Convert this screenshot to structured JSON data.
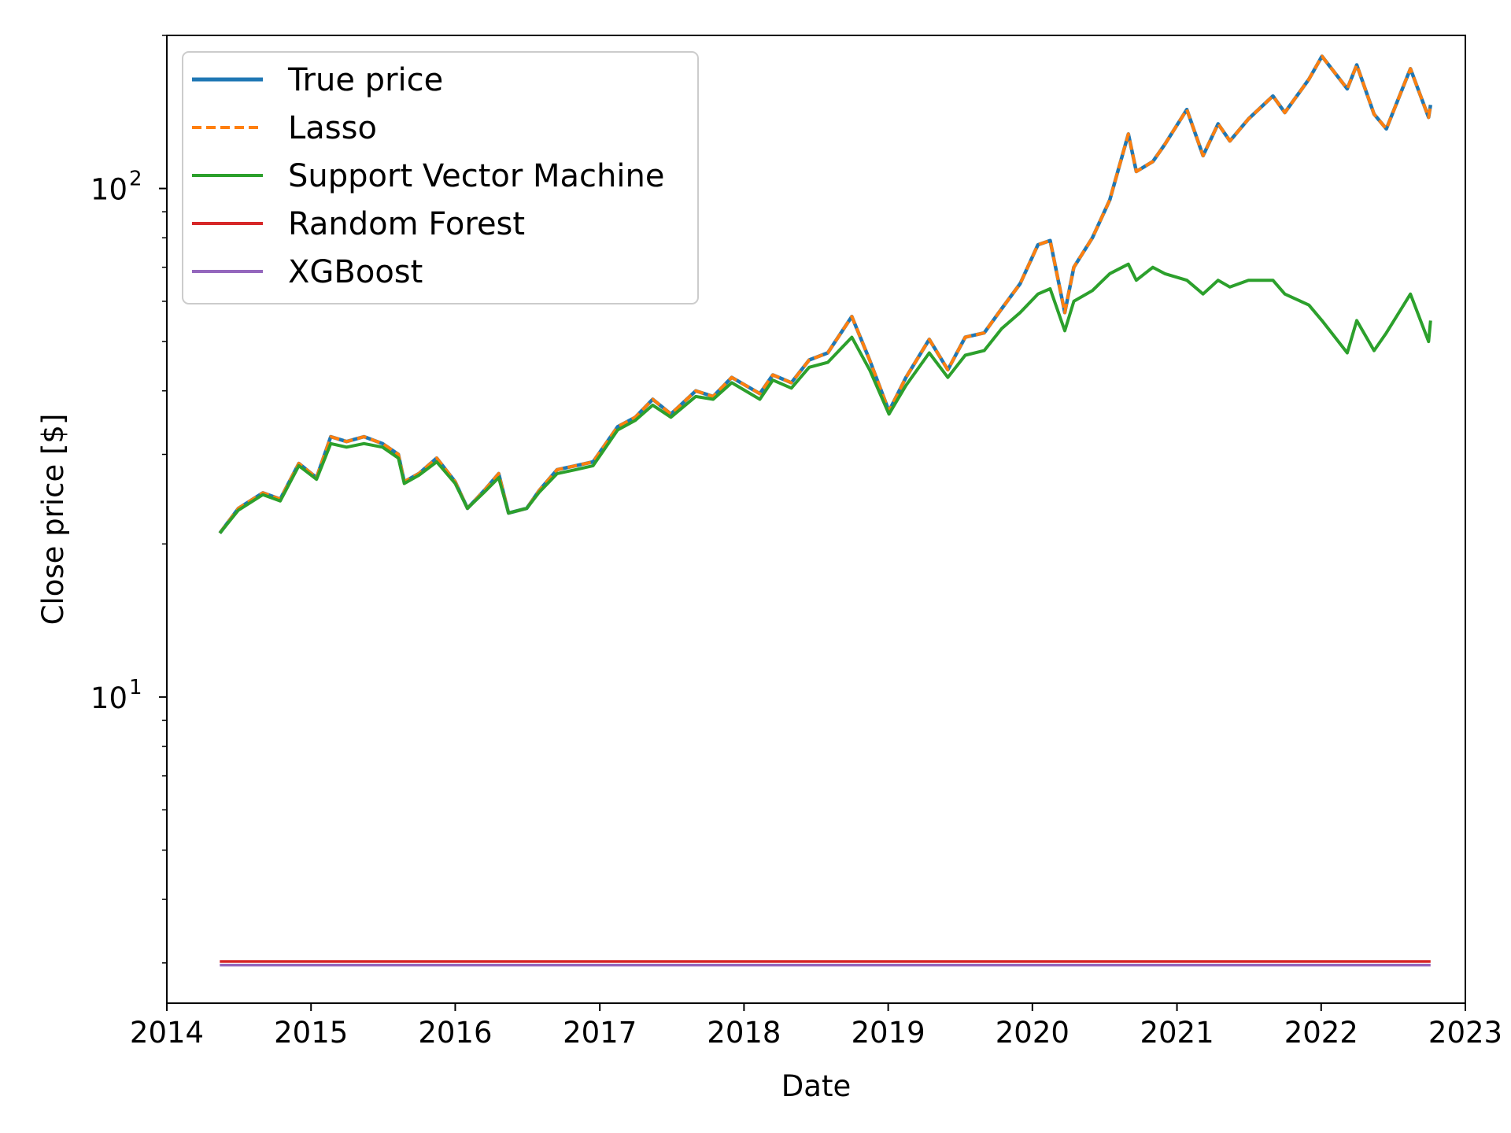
{
  "chart_data": {
    "type": "line",
    "title": "",
    "xlabel": "Date",
    "ylabel": "Close price [$]",
    "yscale": "log",
    "ylim": [
      2.5,
      200
    ],
    "xlim": [
      "2014-01-01",
      "2023-01-01"
    ],
    "x_ticks": [
      "2014",
      "2015",
      "2016",
      "2017",
      "2018",
      "2019",
      "2020",
      "2021",
      "2022",
      "2023"
    ],
    "y_major_ticks": [
      {
        "base": "10",
        "exp": "1",
        "value": 10
      },
      {
        "base": "10",
        "exp": "2",
        "value": 100
      }
    ],
    "legend": {
      "placement": "upper-left"
    },
    "grid": false,
    "series": [
      {
        "name": "True price",
        "color": "#1f77b4",
        "style": "solid",
        "points": [
          [
            "2014-05-15",
            21.0
          ],
          [
            "2014-07-01",
            23.5
          ],
          [
            "2014-09-01",
            25.2
          ],
          [
            "2014-10-15",
            24.5
          ],
          [
            "2014-12-01",
            28.8
          ],
          [
            "2015-01-15",
            27.0
          ],
          [
            "2015-02-20",
            32.5
          ],
          [
            "2015-04-01",
            31.8
          ],
          [
            "2015-05-15",
            32.5
          ],
          [
            "2015-07-01",
            31.5
          ],
          [
            "2015-08-10",
            30.0
          ],
          [
            "2015-08-25",
            26.5
          ],
          [
            "2015-10-01",
            27.5
          ],
          [
            "2015-11-15",
            29.5
          ],
          [
            "2016-01-01",
            26.5
          ],
          [
            "2016-02-01",
            23.5
          ],
          [
            "2016-03-15",
            25.5
          ],
          [
            "2016-04-20",
            27.5
          ],
          [
            "2016-05-15",
            23.0
          ],
          [
            "2016-06-30",
            23.5
          ],
          [
            "2016-08-01",
            25.5
          ],
          [
            "2016-09-15",
            28.0
          ],
          [
            "2016-11-01",
            28.5
          ],
          [
            "2016-12-15",
            29.0
          ],
          [
            "2017-02-15",
            34.0
          ],
          [
            "2017-04-01",
            35.5
          ],
          [
            "2017-05-15",
            38.5
          ],
          [
            "2017-06-30",
            36.0
          ],
          [
            "2017-09-01",
            40.0
          ],
          [
            "2017-10-15",
            39.0
          ],
          [
            "2017-12-01",
            42.5
          ],
          [
            "2018-02-10",
            39.5
          ],
          [
            "2018-03-15",
            43.0
          ],
          [
            "2018-05-01",
            41.5
          ],
          [
            "2018-06-15",
            46.0
          ],
          [
            "2018-08-01",
            47.5
          ],
          [
            "2018-10-01",
            56.0
          ],
          [
            "2018-11-15",
            46.0
          ],
          [
            "2019-01-03",
            36.5
          ],
          [
            "2019-02-15",
            42.5
          ],
          [
            "2019-04-15",
            50.5
          ],
          [
            "2019-06-01",
            44.0
          ],
          [
            "2019-07-15",
            51.0
          ],
          [
            "2019-09-01",
            52.0
          ],
          [
            "2019-10-15",
            58.0
          ],
          [
            "2019-12-01",
            65.0
          ],
          [
            "2020-01-15",
            77.5
          ],
          [
            "2020-02-15",
            79.0
          ],
          [
            "2020-03-23",
            57.0
          ],
          [
            "2020-04-15",
            70.0
          ],
          [
            "2020-06-01",
            80.0
          ],
          [
            "2020-07-15",
            95.0
          ],
          [
            "2020-08-31",
            128.0
          ],
          [
            "2020-09-20",
            108.0
          ],
          [
            "2020-11-01",
            113.0
          ],
          [
            "2020-12-01",
            122.0
          ],
          [
            "2021-01-26",
            143.0
          ],
          [
            "2021-03-08",
            116.0
          ],
          [
            "2021-04-15",
            134.0
          ],
          [
            "2021-05-15",
            124.0
          ],
          [
            "2021-07-01",
            137.0
          ],
          [
            "2021-09-01",
            152.0
          ],
          [
            "2021-10-01",
            141.0
          ],
          [
            "2021-12-01",
            164.0
          ],
          [
            "2022-01-03",
            182.0
          ],
          [
            "2022-03-08",
            157.0
          ],
          [
            "2022-04-01",
            175.0
          ],
          [
            "2022-05-15",
            140.0
          ],
          [
            "2022-06-15",
            131.0
          ],
          [
            "2022-08-15",
            172.0
          ],
          [
            "2022-09-30",
            138.0
          ],
          [
            "2022-10-05",
            146.0
          ]
        ]
      },
      {
        "name": "Lasso",
        "color": "#ff7f0e",
        "style": "dashed",
        "points": [
          [
            "2014-05-15",
            21.0
          ],
          [
            "2014-07-01",
            23.5
          ],
          [
            "2014-09-01",
            25.2
          ],
          [
            "2014-10-15",
            24.5
          ],
          [
            "2014-12-01",
            28.8
          ],
          [
            "2015-01-15",
            27.0
          ],
          [
            "2015-02-20",
            32.5
          ],
          [
            "2015-04-01",
            31.8
          ],
          [
            "2015-05-15",
            32.5
          ],
          [
            "2015-07-01",
            31.5
          ],
          [
            "2015-08-10",
            30.0
          ],
          [
            "2015-08-25",
            26.5
          ],
          [
            "2015-10-01",
            27.5
          ],
          [
            "2015-11-15",
            29.5
          ],
          [
            "2016-01-01",
            26.5
          ],
          [
            "2016-02-01",
            23.5
          ],
          [
            "2016-03-15",
            25.5
          ],
          [
            "2016-04-20",
            27.5
          ],
          [
            "2016-05-15",
            23.0
          ],
          [
            "2016-06-30",
            23.5
          ],
          [
            "2016-08-01",
            25.5
          ],
          [
            "2016-09-15",
            28.0
          ],
          [
            "2016-11-01",
            28.5
          ],
          [
            "2016-12-15",
            29.0
          ],
          [
            "2017-02-15",
            34.0
          ],
          [
            "2017-04-01",
            35.5
          ],
          [
            "2017-05-15",
            38.5
          ],
          [
            "2017-06-30",
            36.0
          ],
          [
            "2017-09-01",
            40.0
          ],
          [
            "2017-10-15",
            39.0
          ],
          [
            "2017-12-01",
            42.5
          ],
          [
            "2018-02-10",
            39.5
          ],
          [
            "2018-03-15",
            43.0
          ],
          [
            "2018-05-01",
            41.5
          ],
          [
            "2018-06-15",
            46.0
          ],
          [
            "2018-08-01",
            47.5
          ],
          [
            "2018-10-01",
            56.0
          ],
          [
            "2018-11-15",
            46.0
          ],
          [
            "2019-01-03",
            36.5
          ],
          [
            "2019-02-15",
            42.5
          ],
          [
            "2019-04-15",
            50.5
          ],
          [
            "2019-06-01",
            44.0
          ],
          [
            "2019-07-15",
            51.0
          ],
          [
            "2019-09-01",
            52.0
          ],
          [
            "2019-10-15",
            58.0
          ],
          [
            "2019-12-01",
            65.0
          ],
          [
            "2020-01-15",
            77.5
          ],
          [
            "2020-02-15",
            79.0
          ],
          [
            "2020-03-23",
            57.0
          ],
          [
            "2020-04-15",
            70.0
          ],
          [
            "2020-06-01",
            80.0
          ],
          [
            "2020-07-15",
            95.0
          ],
          [
            "2020-08-31",
            128.0
          ],
          [
            "2020-09-20",
            108.0
          ],
          [
            "2020-11-01",
            113.0
          ],
          [
            "2020-12-01",
            122.0
          ],
          [
            "2021-01-26",
            143.0
          ],
          [
            "2021-03-08",
            116.0
          ],
          [
            "2021-04-15",
            134.0
          ],
          [
            "2021-05-15",
            124.0
          ],
          [
            "2021-07-01",
            137.0
          ],
          [
            "2021-09-01",
            152.0
          ],
          [
            "2021-10-01",
            141.0
          ],
          [
            "2021-12-01",
            164.0
          ],
          [
            "2022-01-03",
            182.0
          ],
          [
            "2022-03-08",
            157.0
          ],
          [
            "2022-04-01",
            175.0
          ],
          [
            "2022-05-15",
            140.0
          ],
          [
            "2022-06-15",
            131.0
          ],
          [
            "2022-08-15",
            172.0
          ],
          [
            "2022-09-30",
            138.0
          ],
          [
            "2022-10-05",
            146.0
          ]
        ]
      },
      {
        "name": "Support Vector Machine",
        "color": "#2ca02c",
        "style": "solid",
        "points": [
          [
            "2014-05-15",
            21.0
          ],
          [
            "2014-07-01",
            23.3
          ],
          [
            "2014-09-01",
            25.0
          ],
          [
            "2014-10-15",
            24.3
          ],
          [
            "2014-12-01",
            28.5
          ],
          [
            "2015-01-15",
            26.8
          ],
          [
            "2015-02-20",
            31.5
          ],
          [
            "2015-04-01",
            31.0
          ],
          [
            "2015-05-15",
            31.5
          ],
          [
            "2015-07-01",
            31.0
          ],
          [
            "2015-08-10",
            29.5
          ],
          [
            "2015-08-25",
            26.3
          ],
          [
            "2015-10-01",
            27.3
          ],
          [
            "2015-11-15",
            29.0
          ],
          [
            "2016-01-01",
            26.3
          ],
          [
            "2016-02-01",
            23.5
          ],
          [
            "2016-03-15",
            25.3
          ],
          [
            "2016-04-20",
            27.0
          ],
          [
            "2016-05-15",
            23.0
          ],
          [
            "2016-06-30",
            23.5
          ],
          [
            "2016-08-01",
            25.3
          ],
          [
            "2016-09-15",
            27.5
          ],
          [
            "2016-11-01",
            28.0
          ],
          [
            "2016-12-15",
            28.5
          ],
          [
            "2017-02-15",
            33.5
          ],
          [
            "2017-04-01",
            35.0
          ],
          [
            "2017-05-15",
            37.5
          ],
          [
            "2017-06-30",
            35.5
          ],
          [
            "2017-09-01",
            39.0
          ],
          [
            "2017-10-15",
            38.5
          ],
          [
            "2017-12-01",
            41.5
          ],
          [
            "2018-02-10",
            38.5
          ],
          [
            "2018-03-15",
            42.0
          ],
          [
            "2018-05-01",
            40.5
          ],
          [
            "2018-06-15",
            44.5
          ],
          [
            "2018-08-01",
            45.5
          ],
          [
            "2018-10-01",
            51.0
          ],
          [
            "2018-11-15",
            44.0
          ],
          [
            "2019-01-03",
            36.0
          ],
          [
            "2019-02-15",
            41.0
          ],
          [
            "2019-04-15",
            47.5
          ],
          [
            "2019-06-01",
            42.5
          ],
          [
            "2019-07-15",
            47.0
          ],
          [
            "2019-09-01",
            48.0
          ],
          [
            "2019-10-15",
            53.0
          ],
          [
            "2019-12-01",
            57.0
          ],
          [
            "2020-01-15",
            62.0
          ],
          [
            "2020-02-15",
            63.5
          ],
          [
            "2020-03-23",
            52.5
          ],
          [
            "2020-04-15",
            60.0
          ],
          [
            "2020-06-01",
            63.0
          ],
          [
            "2020-07-15",
            68.0
          ],
          [
            "2020-08-31",
            71.0
          ],
          [
            "2020-09-20",
            66.0
          ],
          [
            "2020-11-01",
            70.0
          ],
          [
            "2020-12-01",
            68.0
          ],
          [
            "2021-01-26",
            66.0
          ],
          [
            "2021-03-08",
            62.0
          ],
          [
            "2021-04-15",
            66.0
          ],
          [
            "2021-05-15",
            64.0
          ],
          [
            "2021-07-01",
            66.0
          ],
          [
            "2021-09-01",
            66.0
          ],
          [
            "2021-10-01",
            62.0
          ],
          [
            "2021-12-01",
            59.0
          ],
          [
            "2022-01-03",
            55.0
          ],
          [
            "2022-03-08",
            47.5
          ],
          [
            "2022-04-01",
            55.0
          ],
          [
            "2022-05-15",
            48.0
          ],
          [
            "2022-06-15",
            52.0
          ],
          [
            "2022-08-15",
            62.0
          ],
          [
            "2022-09-30",
            50.0
          ],
          [
            "2022-10-05",
            55.0
          ]
        ]
      },
      {
        "name": "Random Forest",
        "color": "#d62728",
        "style": "solid",
        "points": [
          [
            "2014-05-15",
            3.02
          ],
          [
            "2022-10-05",
            3.02
          ]
        ]
      },
      {
        "name": "XGBoost",
        "color": "#9467bd",
        "style": "solid",
        "points": [
          [
            "2014-05-15",
            2.97
          ],
          [
            "2022-10-05",
            2.97
          ]
        ]
      }
    ]
  }
}
